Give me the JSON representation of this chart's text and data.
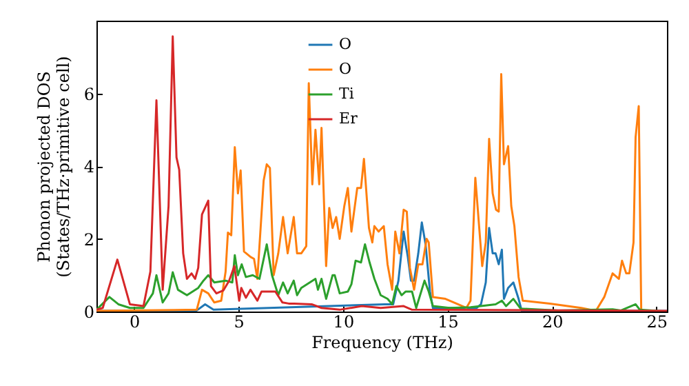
{
  "chart_data": {
    "type": "line",
    "xlabel": "Frequency (THz)",
    "ylabel": "Phonon projected DOS\n(States/THz·primitive cell)",
    "xlim": [
      -1.8,
      25.5
    ],
    "ylim": [
      0,
      8
    ],
    "xticks": [
      0,
      5,
      10,
      15,
      20,
      25
    ],
    "yticks": [
      0,
      2,
      4,
      6
    ],
    "grid": false,
    "legend": "top",
    "line_style": "solid",
    "marker": "none",
    "series": [
      {
        "name": "O",
        "color": "#1f77b4",
        "x": [
          -1.8,
          3.0,
          3.4,
          3.8,
          12.0,
          12.4,
          12.65,
          12.9,
          13.1,
          13.25,
          13.4,
          13.6,
          13.77,
          13.95,
          14.16,
          14.3,
          16.4,
          16.6,
          16.83,
          16.99,
          17.16,
          17.3,
          17.45,
          17.6,
          17.7,
          17.9,
          18.15,
          18.4,
          18.55,
          25.5
        ],
        "values": [
          0.02,
          0.03,
          0.2,
          0.05,
          0.2,
          0.2,
          0.85,
          2.2,
          1.5,
          0.85,
          0.85,
          1.6,
          2.45,
          1.85,
          0.55,
          0.1,
          0.1,
          0.2,
          0.8,
          2.3,
          1.6,
          1.6,
          1.3,
          1.7,
          0.35,
          0.65,
          0.8,
          0.35,
          0.02,
          0.02
        ]
      },
      {
        "name": "O",
        "color": "#ff7f0e",
        "x": [
          -1.8,
          3.0,
          3.25,
          3.55,
          3.84,
          4.17,
          4.38,
          4.49,
          4.65,
          4.82,
          4.97,
          5.1,
          5.26,
          5.58,
          5.74,
          5.9,
          6.2,
          6.35,
          6.5,
          6.68,
          6.9,
          7.13,
          7.35,
          7.64,
          7.8,
          8.0,
          8.24,
          8.36,
          8.53,
          8.68,
          8.86,
          8.97,
          9.19,
          9.34,
          9.5,
          9.67,
          9.84,
          10.06,
          10.23,
          10.4,
          10.68,
          10.86,
          11.0,
          11.24,
          11.4,
          11.5,
          11.7,
          11.95,
          12.13,
          12.35,
          12.5,
          12.7,
          12.9,
          13.05,
          13.2,
          13.4,
          13.6,
          13.8,
          14.0,
          14.1,
          14.3,
          14.9,
          15.5,
          15.9,
          16.1,
          16.33,
          16.66,
          16.83,
          16.99,
          17.16,
          17.32,
          17.45,
          17.57,
          17.7,
          17.9,
          18.05,
          18.2,
          18.4,
          18.6,
          19.9,
          21.4,
          22.1,
          22.5,
          22.9,
          23.2,
          23.35,
          23.55,
          23.7,
          23.9,
          24.0,
          24.15,
          24.27
        ],
        "values": [
          0.02,
          0.05,
          0.6,
          0.5,
          0.25,
          0.3,
          1.1,
          2.17,
          2.1,
          4.52,
          3.25,
          3.88,
          1.65,
          1.5,
          1.45,
          0.9,
          3.6,
          4.05,
          3.95,
          1.0,
          1.6,
          2.6,
          1.6,
          2.6,
          1.6,
          1.6,
          1.8,
          6.28,
          3.5,
          5.0,
          3.5,
          5.05,
          1.25,
          2.85,
          2.3,
          2.6,
          2.0,
          2.9,
          3.4,
          2.2,
          3.4,
          3.4,
          4.2,
          2.3,
          1.9,
          2.35,
          2.2,
          2.35,
          1.3,
          0.6,
          2.2,
          1.6,
          2.8,
          2.75,
          1.2,
          0.6,
          1.3,
          1.3,
          2.0,
          1.9,
          0.4,
          0.35,
          0.2,
          0.1,
          0.3,
          3.68,
          1.25,
          1.9,
          4.75,
          3.25,
          2.8,
          2.75,
          6.53,
          4.05,
          4.55,
          2.9,
          2.35,
          0.95,
          0.3,
          0.22,
          0.1,
          0.02,
          0.4,
          1.05,
          0.9,
          1.4,
          1.05,
          1.05,
          1.9,
          4.8,
          5.65,
          0.0
        ]
      },
      {
        "name": "Ti",
        "color": "#2ca02c",
        "x": [
          -1.8,
          -1.18,
          -0.75,
          -0.2,
          0.45,
          0.9,
          1.07,
          1.37,
          1.65,
          1.85,
          2.1,
          2.53,
          3.07,
          3.32,
          3.55,
          3.84,
          4.38,
          4.7,
          4.82,
          4.97,
          5.15,
          5.35,
          5.68,
          6.0,
          6.35,
          6.6,
          6.9,
          7.13,
          7.35,
          7.64,
          7.8,
          8.0,
          8.68,
          8.8,
          8.97,
          9.19,
          9.5,
          9.6,
          9.84,
          10.23,
          10.4,
          10.6,
          10.86,
          11.05,
          11.27,
          11.5,
          11.8,
          12.13,
          12.35,
          12.55,
          12.8,
          13.0,
          13.3,
          13.5,
          13.9,
          14.1,
          14.3,
          15.1,
          16.1,
          16.6,
          17.3,
          17.6,
          17.8,
          18.15,
          18.5,
          20.3,
          22.9,
          23.3,
          24.0,
          24.2,
          25.5
        ],
        "values": [
          0.05,
          0.4,
          0.2,
          0.1,
          0.1,
          0.5,
          1.0,
          0.25,
          0.5,
          1.08,
          0.6,
          0.45,
          0.65,
          0.85,
          1.0,
          0.8,
          0.85,
          0.8,
          1.55,
          1.0,
          1.3,
          0.95,
          1.0,
          0.9,
          1.85,
          1.0,
          0.45,
          0.8,
          0.5,
          0.85,
          0.45,
          0.65,
          0.9,
          0.6,
          0.9,
          0.35,
          1.0,
          1.0,
          0.5,
          0.55,
          0.75,
          1.4,
          1.35,
          1.85,
          1.35,
          0.9,
          0.45,
          0.35,
          0.2,
          0.7,
          0.45,
          0.55,
          0.55,
          0.1,
          0.85,
          0.55,
          0.15,
          0.1,
          0.12,
          0.15,
          0.2,
          0.3,
          0.15,
          0.35,
          0.08,
          0.03,
          0.06,
          0.03,
          0.2,
          0.05,
          0.0
        ]
      },
      {
        "name": "Er",
        "color": "#d62728",
        "x": [
          -1.8,
          -1.5,
          -0.8,
          -0.2,
          0.45,
          0.78,
          1.07,
          1.37,
          1.65,
          1.85,
          2.03,
          2.16,
          2.35,
          2.53,
          2.75,
          2.92,
          3.07,
          3.25,
          3.55,
          3.68,
          3.94,
          4.27,
          4.55,
          4.8,
          5.03,
          5.13,
          5.35,
          5.57,
          5.9,
          6.1,
          6.76,
          7.1,
          7.4,
          7.66,
          8.5,
          8.97,
          9.84,
          10.9,
          11.8,
          12.9,
          13.3,
          25.5
        ],
        "values": [
          0.05,
          0.1,
          1.43,
          0.2,
          0.15,
          1.1,
          5.81,
          0.6,
          2.9,
          7.57,
          4.24,
          3.9,
          1.6,
          0.9,
          1.05,
          0.9,
          1.2,
          2.67,
          3.05,
          0.7,
          0.5,
          0.58,
          0.85,
          1.25,
          0.3,
          0.65,
          0.38,
          0.6,
          0.3,
          0.55,
          0.55,
          0.25,
          0.22,
          0.22,
          0.2,
          0.1,
          0.05,
          0.15,
          0.1,
          0.15,
          0.05,
          0.02
        ]
      }
    ]
  }
}
